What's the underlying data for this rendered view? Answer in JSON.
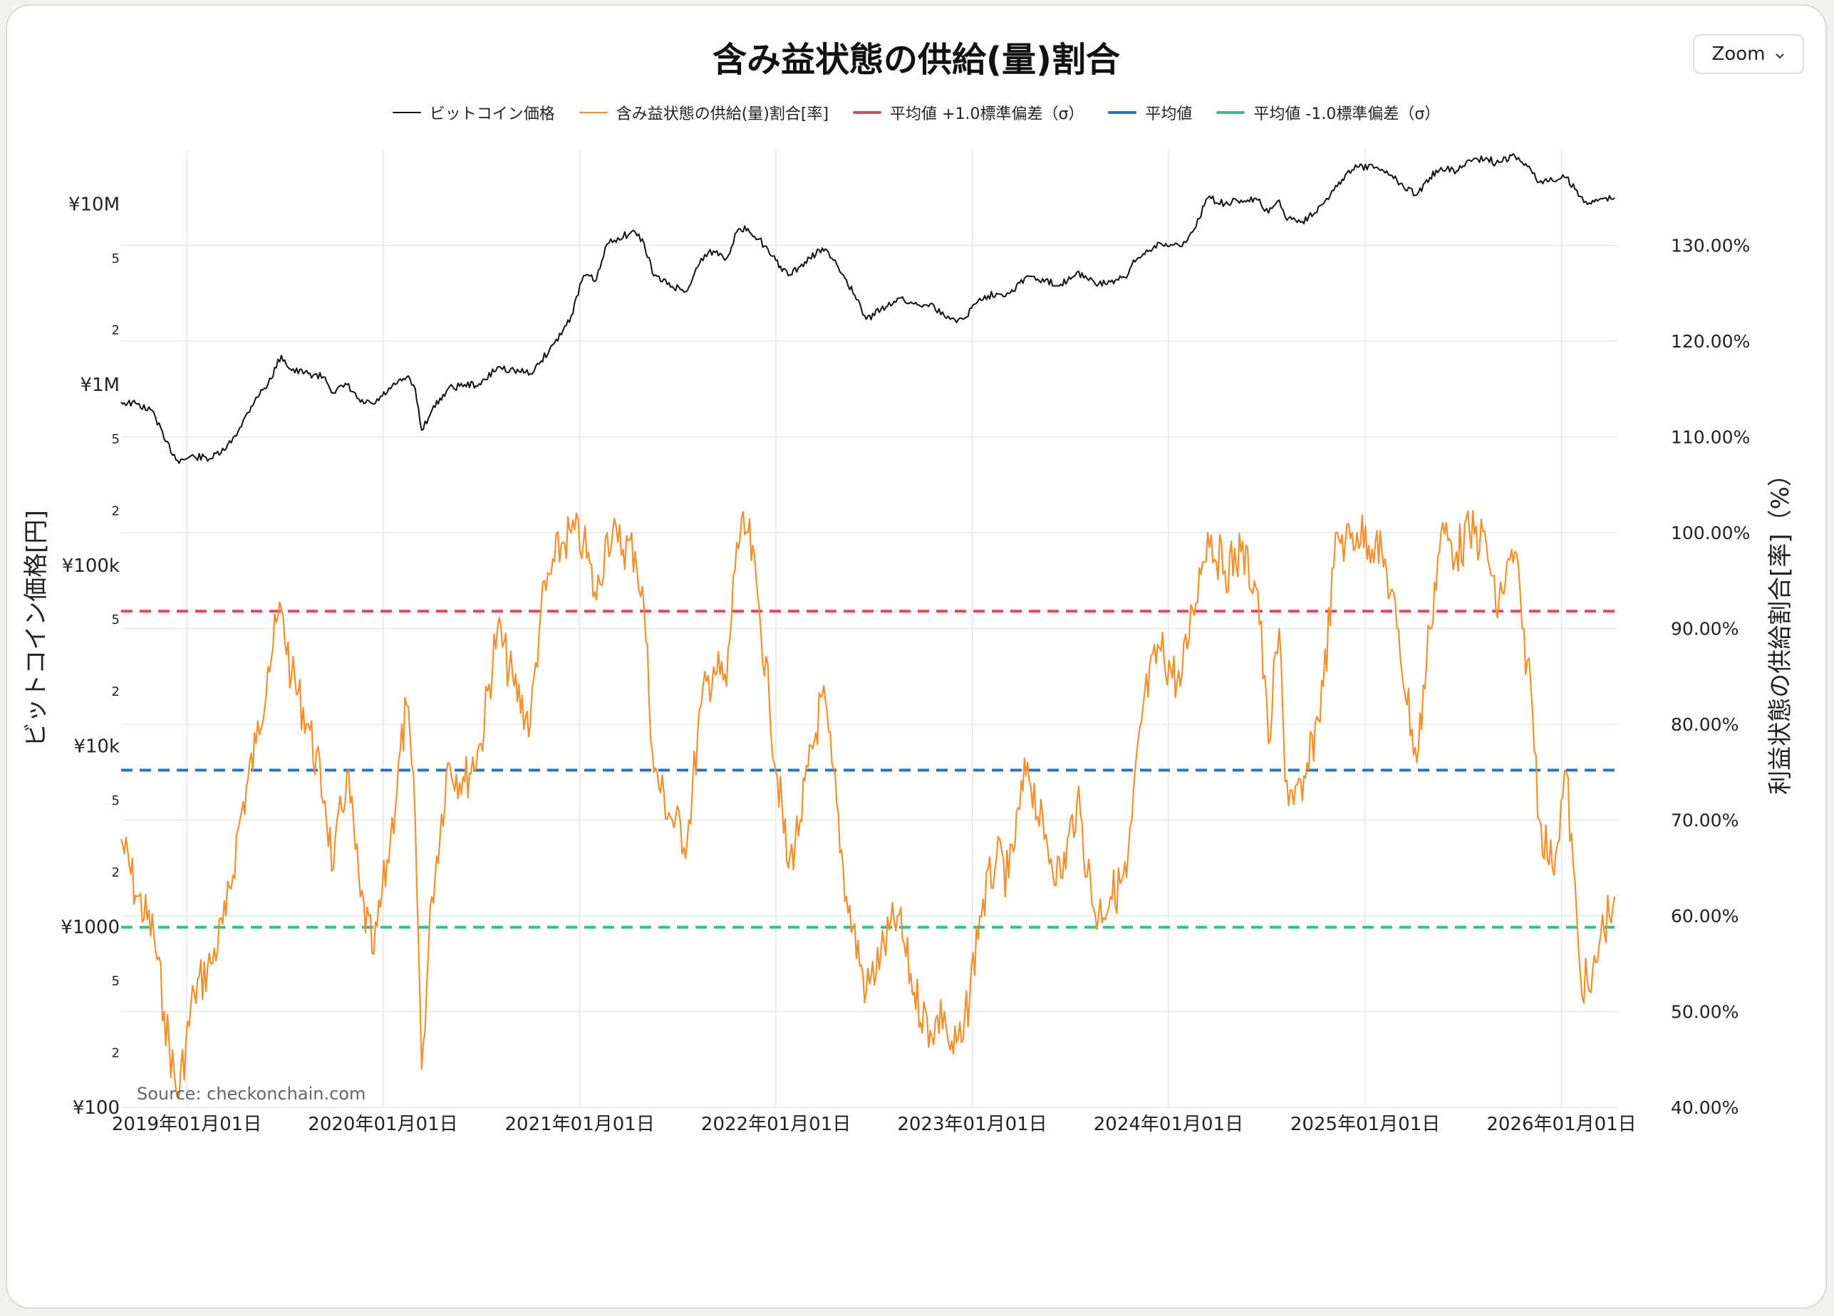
{
  "title": "含み益状態の供給(量)割合",
  "zoom_label": "Zoom",
  "source": "Source: checkonchain.com",
  "colors": {
    "price": "#111111",
    "supply": "#f0912f",
    "plus_sd": "#e8435f",
    "mean": "#1b74d8",
    "minus_sd": "#2fc48c",
    "grid": "#e6e6e6"
  },
  "legend": [
    {
      "label": "ビットコイン価格",
      "color": "#111111",
      "style": "thin"
    },
    {
      "label": "含み益状態の供給(量)割合[率]",
      "color": "#f0912f",
      "style": "thin"
    },
    {
      "label": "平均値 +1.0標準偏差（σ）",
      "color": "#e8435f",
      "style": "thick"
    },
    {
      "label": "平均値",
      "color": "#1b74d8",
      "style": "thick"
    },
    {
      "label": "平均値 -1.0標準偏差（σ）",
      "color": "#2fc48c",
      "style": "thick"
    }
  ],
  "chart_data": {
    "type": "line",
    "title": "含み益状態の供給(量)割合",
    "ylabel_left": "ビットコイン価格[円]",
    "ylabel_right": "利益状態の供給割合[率]（%）",
    "y_left_scale": "log",
    "y_left_range": [
      100,
      20000000
    ],
    "y_left_major_ticks": [
      "¥100",
      "¥1000",
      "¥10k",
      "¥100k",
      "¥1M",
      "¥10M"
    ],
    "y_left_minor_ticks": [
      "2",
      "5"
    ],
    "y_right_range": [
      40,
      140
    ],
    "y_right_ticks": [
      "40.00%",
      "50.00%",
      "60.00%",
      "70.00%",
      "80.00%",
      "90.00%",
      "100.00%",
      "110.00%",
      "120.00%",
      "130.00%"
    ],
    "x_range": [
      "2018-09-01",
      "2026-04-15"
    ],
    "x_ticks": [
      "2019年01月01日",
      "2020年01月01日",
      "2021年01月01日",
      "2022年01月01日",
      "2023年01月01日",
      "2024年01月01日",
      "2025年01月01日",
      "2026年01月01日"
    ],
    "grid": true,
    "legend_position": "top",
    "reference_lines": [
      {
        "name": "平均値 +1.0標準偏差（σ）",
        "y": 91.8
      },
      {
        "name": "平均値",
        "y": 75.2
      },
      {
        "name": "平均値 -1.0標準偏差（σ）",
        "y": 58.8
      }
    ],
    "series": [
      {
        "name": "ビットコイン価格",
        "axis": "left",
        "x": [
          "2018-09-01",
          "2018-10-01",
          "2018-11-01",
          "2018-11-20",
          "2018-12-15",
          "2019-01-15",
          "2019-02-15",
          "2019-03-15",
          "2019-04-10",
          "2019-05-10",
          "2019-06-01",
          "2019-06-26",
          "2019-07-15",
          "2019-08-15",
          "2019-09-15",
          "2019-10-01",
          "2019-10-26",
          "2019-11-20",
          "2019-12-15",
          "2020-01-15",
          "2020-02-14",
          "2020-03-01",
          "2020-03-13",
          "2020-04-01",
          "2020-05-01",
          "2020-06-01",
          "2020-07-01",
          "2020-08-01",
          "2020-09-01",
          "2020-10-01",
          "2020-10-21",
          "2020-11-15",
          "2020-12-01",
          "2020-12-16",
          "2021-01-08",
          "2021-02-01",
          "2021-02-21",
          "2021-03-13",
          "2021-04-14",
          "2021-05-01",
          "2021-05-19",
          "2021-06-22",
          "2021-07-20",
          "2021-08-15",
          "2021-09-07",
          "2021-10-01",
          "2021-10-20",
          "2021-11-10",
          "2021-12-01",
          "2021-12-20",
          "2022-01-24",
          "2022-02-15",
          "2022-03-28",
          "2022-04-15",
          "2022-05-12",
          "2022-06-18",
          "2022-07-15",
          "2022-08-15",
          "2022-09-15",
          "2022-10-15",
          "2022-11-10",
          "2022-11-21",
          "2022-12-15",
          "2023-01-15",
          "2023-02-15",
          "2023-03-10",
          "2023-04-14",
          "2023-05-15",
          "2023-06-15",
          "2023-07-15",
          "2023-08-18",
          "2023-09-15",
          "2023-10-15",
          "2023-10-25",
          "2023-11-15",
          "2023-12-15",
          "2024-01-23",
          "2024-02-15",
          "2024-03-14",
          "2024-04-15",
          "2024-05-15",
          "2024-06-15",
          "2024-07-05",
          "2024-07-25",
          "2024-08-05",
          "2024-09-06",
          "2024-10-15",
          "2024-11-10",
          "2024-11-25",
          "2024-12-17",
          "2025-01-20",
          "2025-02-10",
          "2025-03-01",
          "2025-04-07",
          "2025-05-01",
          "2025-05-22",
          "2025-06-20",
          "2025-07-14",
          "2025-08-14",
          "2025-09-01",
          "2025-10-06",
          "2025-10-20",
          "2025-11-05",
          "2025-11-21",
          "2025-12-15",
          "2026-01-10",
          "2026-02-05",
          "2026-02-25",
          "2026-03-15",
          "2026-04-10"
        ],
        "y": [
          800000,
          780000,
          700000,
          500000,
          380000,
          400000,
          390000,
          440000,
          580000,
          850000,
          1000000,
          1450000,
          1200000,
          1150000,
          1100000,
          900000,
          1000000,
          800000,
          780000,
          950000,
          1100000,
          950000,
          560000,
          720000,
          950000,
          1000000,
          1000000,
          1250000,
          1200000,
          1150000,
          1350000,
          1700000,
          2000000,
          2400000,
          4000000,
          3800000,
          6000000,
          6500000,
          7000000,
          6000000,
          4000000,
          3500000,
          3300000,
          5000000,
          5500000,
          5000000,
          7000000,
          7300000,
          6400000,
          5300000,
          4000000,
          4500000,
          5700000,
          5000000,
          3800000,
          2300000,
          2600000,
          3000000,
          2800000,
          2800000,
          2400000,
          2300000,
          2300000,
          3000000,
          3200000,
          3200000,
          4000000,
          3700000,
          3600000,
          4200000,
          3600000,
          3700000,
          3900000,
          4600000,
          5300000,
          6100000,
          5800000,
          7000000,
          10800000,
          10000000,
          10500000,
          10500000,
          8900000,
          10500000,
          8500000,
          8000000,
          10000000,
          12500000,
          14500000,
          16000000,
          15900000,
          15200000,
          13500000,
          11200000,
          14000000,
          15900000,
          15200000,
          17500000,
          18000000,
          16800000,
          18500000,
          17000000,
          15500000,
          13200000,
          13500000,
          14000000,
          11000000,
          10000000,
          10700000,
          10800000
        ]
      },
      {
        "name": "含み益状態の供給(量)割合[率]",
        "axis": "right",
        "x": [
          "2018-09-01",
          "2018-10-01",
          "2018-11-01",
          "2018-11-20",
          "2018-12-15",
          "2019-01-15",
          "2019-02-15",
          "2019-03-15",
          "2019-04-10",
          "2019-05-10",
          "2019-06-01",
          "2019-06-26",
          "2019-07-15",
          "2019-08-15",
          "2019-09-15",
          "2019-10-01",
          "2019-10-26",
          "2019-11-20",
          "2019-12-15",
          "2020-01-15",
          "2020-02-14",
          "2020-03-01",
          "2020-03-13",
          "2020-04-01",
          "2020-05-01",
          "2020-06-01",
          "2020-07-01",
          "2020-08-01",
          "2020-09-01",
          "2020-10-01",
          "2020-10-21",
          "2020-11-15",
          "2020-12-01",
          "2020-12-16",
          "2021-01-08",
          "2021-02-01",
          "2021-02-21",
          "2021-03-13",
          "2021-04-14",
          "2021-05-01",
          "2021-05-19",
          "2021-06-22",
          "2021-07-20",
          "2021-08-15",
          "2021-09-07",
          "2021-10-01",
          "2021-10-20",
          "2021-11-10",
          "2021-12-01",
          "2021-12-20",
          "2022-01-24",
          "2022-02-15",
          "2022-03-28",
          "2022-04-15",
          "2022-05-12",
          "2022-06-18",
          "2022-07-15",
          "2022-08-15",
          "2022-09-15",
          "2022-10-15",
          "2022-11-10",
          "2022-11-21",
          "2022-12-15",
          "2023-01-15",
          "2023-02-15",
          "2023-03-10",
          "2023-04-14",
          "2023-05-15",
          "2023-06-15",
          "2023-07-15",
          "2023-08-18",
          "2023-09-15",
          "2023-10-15",
          "2023-10-25",
          "2023-11-15",
          "2023-12-15",
          "2024-01-23",
          "2024-02-15",
          "2024-03-14",
          "2024-04-15",
          "2024-05-15",
          "2024-06-15",
          "2024-07-05",
          "2024-07-25",
          "2024-08-05",
          "2024-09-06",
          "2024-10-15",
          "2024-11-10",
          "2024-11-25",
          "2024-12-17",
          "2025-01-20",
          "2025-02-10",
          "2025-03-01",
          "2025-04-07",
          "2025-05-01",
          "2025-05-22",
          "2025-06-20",
          "2025-07-14",
          "2025-08-14",
          "2025-09-01",
          "2025-10-06",
          "2025-10-20",
          "2025-11-05",
          "2025-11-21",
          "2025-12-15",
          "2026-01-10",
          "2026-02-05",
          "2026-02-25",
          "2026-03-15",
          "2026-04-10"
        ],
        "y": [
          68,
          62,
          58,
          50,
          41,
          52,
          55,
          60,
          70,
          78,
          86,
          92,
          85,
          80,
          72,
          65,
          75,
          62,
          56,
          68,
          82,
          70,
          44,
          62,
          76,
          74,
          78,
          90,
          84,
          80,
          92,
          97,
          99,
          100,
          99,
          93,
          100,
          99,
          98,
          92,
          75,
          70,
          68,
          82,
          86,
          84,
          99,
          100,
          92,
          82,
          65,
          70,
          83,
          76,
          62,
          52,
          56,
          60,
          52,
          48,
          50,
          46,
          47,
          60,
          66,
          64,
          76,
          68,
          64,
          72,
          60,
          62,
          64,
          70,
          82,
          88,
          84,
          92,
          100,
          96,
          98,
          94,
          78,
          90,
          74,
          72,
          84,
          100,
          99,
          100,
          99,
          96,
          90,
          76,
          90,
          100,
          98,
          100,
          99,
          92,
          98,
          90,
          84,
          70,
          65,
          75,
          54,
          52,
          58,
          62
        ]
      }
    ]
  }
}
